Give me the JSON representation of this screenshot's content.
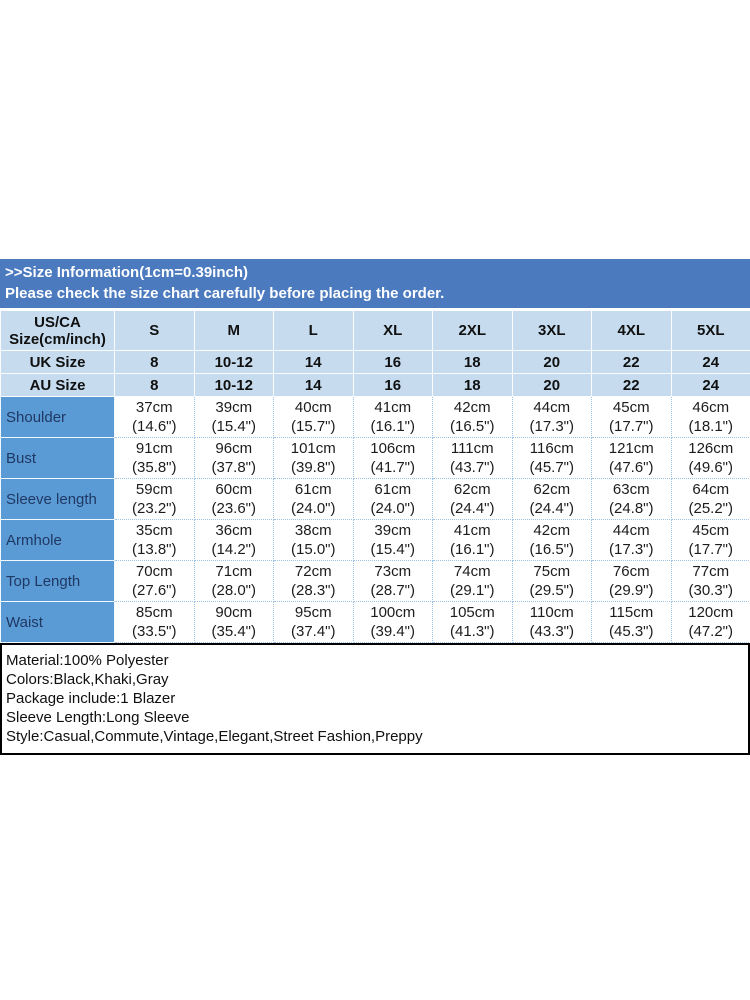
{
  "banner": {
    "line1": ">>Size Information(1cm=0.39inch)",
    "line2": "Please check the size chart carefully before placing the order."
  },
  "size_table": {
    "corner_line1": "US/CA",
    "corner_line2": "Size(cm/inch)",
    "sizes": [
      "S",
      "M",
      "L",
      "XL",
      "2XL",
      "3XL",
      "4XL",
      "5XL"
    ],
    "uk_row": {
      "label": "UK Size",
      "values": [
        "8",
        "10-12",
        "14",
        "16",
        "18",
        "20",
        "22",
        "24"
      ]
    },
    "au_row": {
      "label": "AU Size",
      "values": [
        "8",
        "10-12",
        "14",
        "16",
        "18",
        "20",
        "22",
        "24"
      ]
    },
    "measure_rows": [
      {
        "label": "Shoulder",
        "cm": [
          "37cm",
          "39cm",
          "40cm",
          "41cm",
          "42cm",
          "44cm",
          "45cm",
          "46cm"
        ],
        "inch": [
          "(14.6\")",
          "(15.4\")",
          "(15.7\")",
          "(16.1\")",
          "(16.5\")",
          "(17.3\")",
          "(17.7\")",
          "(18.1\")"
        ]
      },
      {
        "label": "Bust",
        "cm": [
          "91cm",
          "96cm",
          "101cm",
          "106cm",
          "111cm",
          "116cm",
          "121cm",
          "126cm"
        ],
        "inch": [
          "(35.8\")",
          "(37.8\")",
          "(39.8\")",
          "(41.7\")",
          "(43.7\")",
          "(45.7\")",
          "(47.6\")",
          "(49.6\")"
        ]
      },
      {
        "label": "Sleeve length",
        "cm": [
          "59cm",
          "60cm",
          "61cm",
          "61cm",
          "62cm",
          "62cm",
          "63cm",
          "64cm"
        ],
        "inch": [
          "(23.2\")",
          "(23.6\")",
          "(24.0\")",
          "(24.0\")",
          "(24.4\")",
          "(24.4\")",
          "(24.8\")",
          "(25.2\")"
        ]
      },
      {
        "label": "Armhole",
        "cm": [
          "35cm",
          "36cm",
          "38cm",
          "39cm",
          "41cm",
          "42cm",
          "44cm",
          "45cm"
        ],
        "inch": [
          "(13.8\")",
          "(14.2\")",
          "(15.0\")",
          "(15.4\")",
          "(16.1\")",
          "(16.5\")",
          "(17.3\")",
          "(17.7\")"
        ]
      },
      {
        "label": "Top Length",
        "cm": [
          "70cm",
          "71cm",
          "72cm",
          "73cm",
          "74cm",
          "75cm",
          "76cm",
          "77cm"
        ],
        "inch": [
          "(27.6\")",
          "(28.0\")",
          "(28.3\")",
          "(28.7\")",
          "(29.1\")",
          "(29.5\")",
          "(29.9\")",
          "(30.3\")"
        ]
      },
      {
        "label": "Waist",
        "cm": [
          "85cm",
          "90cm",
          "95cm",
          "100cm",
          "105cm",
          "110cm",
          "115cm",
          "120cm"
        ],
        "inch": [
          "(33.5\")",
          "(35.4\")",
          "(37.4\")",
          "(39.4\")",
          "(41.3\")",
          "(43.3\")",
          "(45.3\")",
          "(47.2\")"
        ]
      }
    ]
  },
  "info": {
    "lines": [
      "Material:100% Polyester",
      "Colors:Black,Khaki,Gray",
      "Package include:1 Blazer",
      "Sleeve Length:Long Sleeve",
      "Style:Casual,Commute,Vintage,Elegant,Street Fashion,Preppy"
    ]
  },
  "colors": {
    "banner_bg": "#4b7abf",
    "header_bg": "#c6dcee",
    "label_bg": "#5b9bd5",
    "label_fg": "#1f3864",
    "grid": "#9dc3e6"
  }
}
